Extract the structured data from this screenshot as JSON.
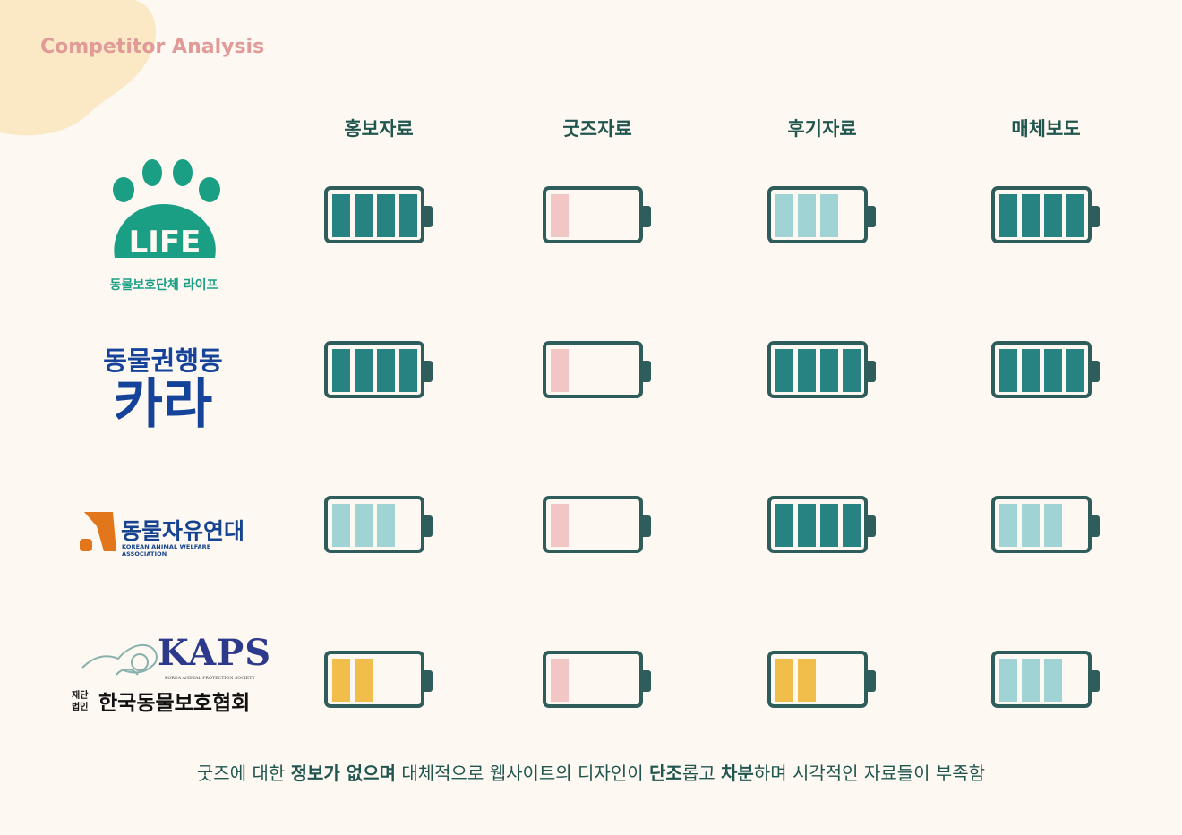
{
  "page": {
    "title": "Competitor Analysis"
  },
  "columns": [
    "홍보자료",
    "굿즈자료",
    "후기자료",
    "매체보도"
  ],
  "colors": {
    "full": "#268381",
    "medium": "#9fd3d4",
    "low": "#f1be4c",
    "empty": "#f3c6c6",
    "outline": "#2f5d5b",
    "text": "#21564f",
    "title": "#e09a97",
    "blob": "#fbe9c6"
  },
  "rows": [
    {
      "org": "LIFE",
      "logo": {
        "mark": "LIFE",
        "caption": "동물보호단체 라이프"
      },
      "ratings": [
        {
          "level": 4,
          "color": "full"
        },
        {
          "level": 1,
          "color": "empty"
        },
        {
          "level": 3,
          "color": "medium"
        },
        {
          "level": 4,
          "color": "full"
        }
      ]
    },
    {
      "org": "카라",
      "logo": {
        "top": "동물권행동",
        "main": "카라"
      },
      "ratings": [
        {
          "level": 4,
          "color": "full"
        },
        {
          "level": 1,
          "color": "empty"
        },
        {
          "level": 4,
          "color": "full"
        },
        {
          "level": 4,
          "color": "full"
        }
      ]
    },
    {
      "org": "동물자유연대",
      "logo": {
        "name": "동물자유연대",
        "sub": "KOREAN ANIMAL WELFARE ASSOCIATION"
      },
      "ratings": [
        {
          "level": 3,
          "color": "medium"
        },
        {
          "level": 1,
          "color": "empty"
        },
        {
          "level": 4,
          "color": "full"
        },
        {
          "level": 3,
          "color": "medium"
        }
      ]
    },
    {
      "org": "한국동물보호협회",
      "logo": {
        "mark": "KAPS",
        "sub": "KOREA ANIMAL PROTECTION SOCIETY",
        "prefix1": "재단",
        "prefix2": "법인",
        "name": "한국동물보호협회"
      },
      "ratings": [
        {
          "level": 2,
          "color": "low"
        },
        {
          "level": 1,
          "color": "empty"
        },
        {
          "level": 2,
          "color": "low"
        },
        {
          "level": 3,
          "color": "medium"
        }
      ]
    }
  ],
  "footer": {
    "t1": "굿즈에 대한 ",
    "b1": "정보가 없으며",
    "t2": " 대체적으로 웹사이트의 디자인이 ",
    "b2": "단조",
    "t3": "롭고 ",
    "b3": "차분",
    "t4": "하며 시각적인 자료들이 부족함"
  }
}
